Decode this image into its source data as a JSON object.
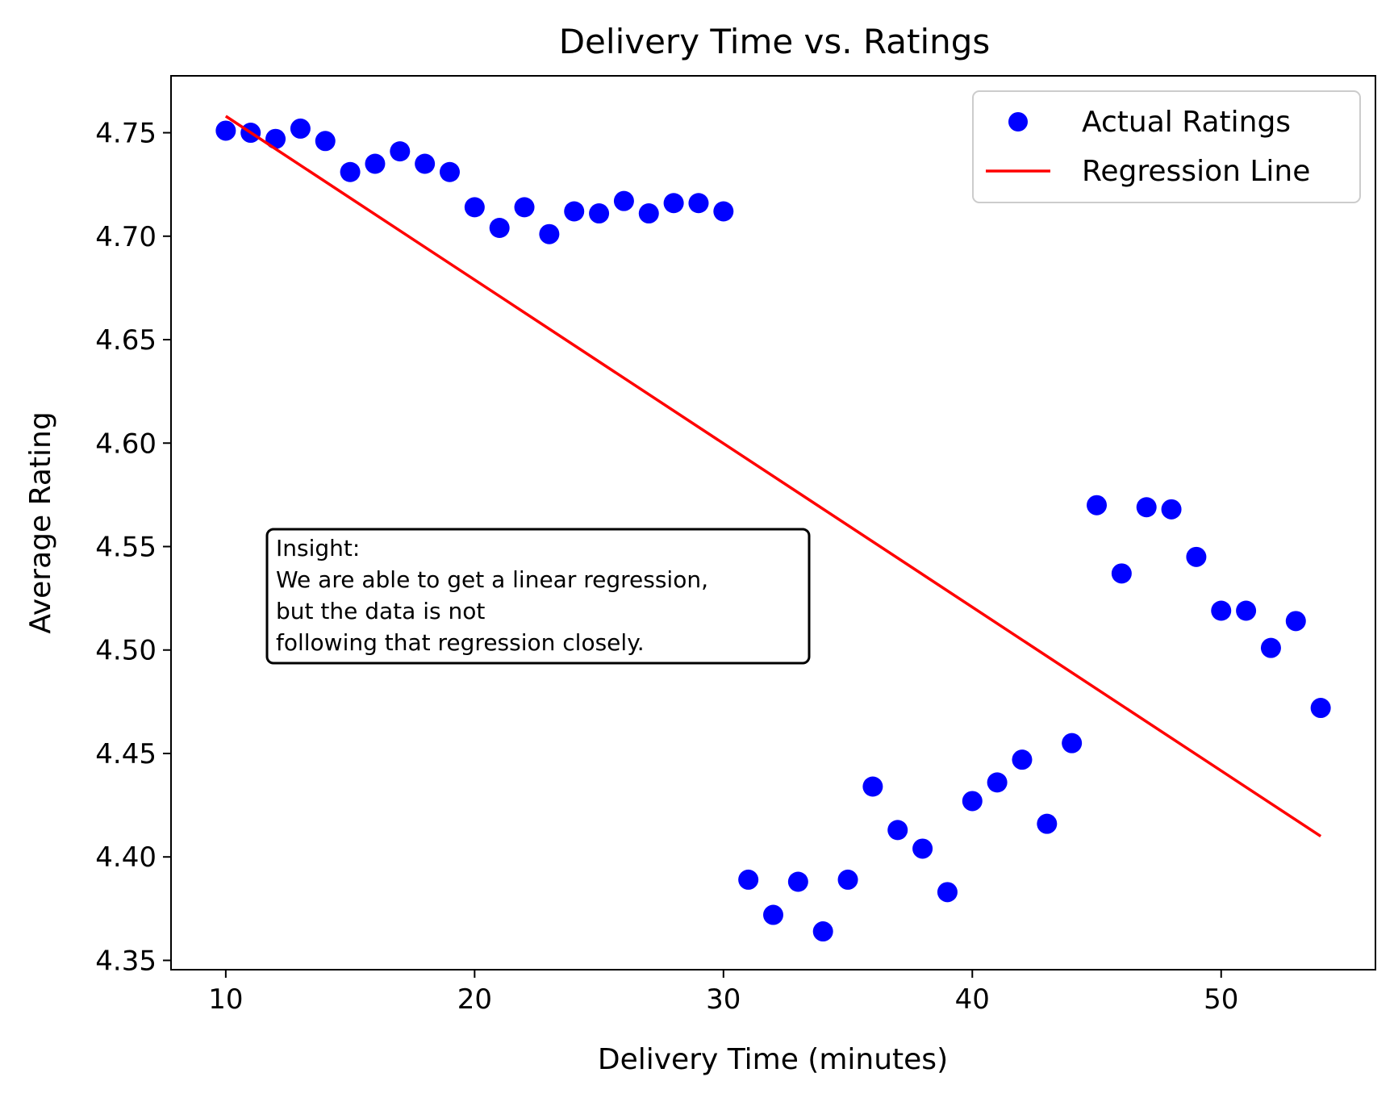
{
  "chart_data": {
    "type": "scatter",
    "title": "Delivery Time vs. Ratings",
    "xlabel": "Delivery Time (minutes)",
    "ylabel": "Average Rating",
    "xlim": [
      7.8,
      56.2
    ],
    "ylim": [
      4.3455,
      4.7775
    ],
    "xticks": [
      10,
      20,
      30,
      40,
      50
    ],
    "xtick_labels": [
      "10",
      "20",
      "30",
      "40",
      "50"
    ],
    "yticks": [
      4.35,
      4.4,
      4.45,
      4.5,
      4.55,
      4.6,
      4.65,
      4.7,
      4.75
    ],
    "ytick_labels": [
      "4.35",
      "4.40",
      "4.45",
      "4.50",
      "4.55",
      "4.60",
      "4.65",
      "4.70",
      "4.75"
    ],
    "grid": false,
    "legend_position": "top-right",
    "series": [
      {
        "name": "Actual Ratings",
        "kind": "scatter",
        "color": "#0000ff",
        "x": [
          10,
          11,
          12,
          13,
          14,
          15,
          16,
          17,
          18,
          19,
          20,
          21,
          22,
          23,
          24,
          25,
          26,
          27,
          28,
          29,
          30,
          31,
          32,
          33,
          34,
          35,
          36,
          37,
          38,
          39,
          40,
          41,
          42,
          43,
          44,
          45,
          46,
          47,
          48,
          49,
          50,
          51,
          52,
          53,
          54
        ],
        "y": [
          4.751,
          4.75,
          4.747,
          4.752,
          4.746,
          4.731,
          4.735,
          4.741,
          4.735,
          4.731,
          4.714,
          4.704,
          4.714,
          4.701,
          4.712,
          4.711,
          4.717,
          4.711,
          4.716,
          4.716,
          4.712,
          4.389,
          4.372,
          4.388,
          4.364,
          4.389,
          4.434,
          4.413,
          4.404,
          4.383,
          4.427,
          4.436,
          4.447,
          4.416,
          4.455,
          4.57,
          4.537,
          4.569,
          4.568,
          4.545,
          4.519,
          4.519,
          4.501,
          4.514,
          4.472
        ]
      },
      {
        "name": "Regression Line",
        "kind": "line",
        "color": "#ff0000",
        "x": [
          10,
          54
        ],
        "y": [
          4.758,
          4.41
        ]
      }
    ],
    "annotation": {
      "lines": [
        "Insight:",
        "We are able to get a linear regression,",
        "but the data is not",
        "following that regression closely."
      ]
    }
  }
}
